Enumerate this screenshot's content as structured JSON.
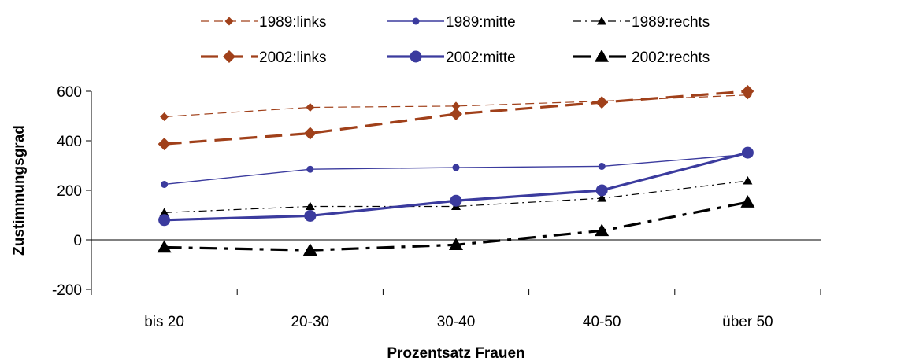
{
  "chart_data": {
    "type": "line",
    "title": "",
    "xlabel": "Prozentsatz Frauen",
    "ylabel": "Zustimmungsgrad",
    "categories": [
      "bis 20",
      "20-30",
      "30-40",
      "40-50",
      "über 50"
    ],
    "ylim": [
      -200,
      600
    ],
    "yticks": [
      -200,
      0,
      200,
      400,
      600
    ],
    "grid": false,
    "legend_position": "top",
    "series": [
      {
        "name": "1989:links",
        "values": [
          497,
          535,
          540,
          560,
          585
        ],
        "color": "#a0401a",
        "style": "thin-dashed",
        "marker": "diamond-small"
      },
      {
        "name": "1989:mitte",
        "values": [
          224,
          285,
          292,
          297,
          345
        ],
        "color": "#3b3b9e",
        "style": "thin-solid",
        "marker": "circle-small"
      },
      {
        "name": "1989:rechts",
        "values": [
          110,
          135,
          135,
          168,
          238
        ],
        "color": "#000000",
        "style": "thin-dashdot",
        "marker": "triangle-small"
      },
      {
        "name": "2002:links",
        "values": [
          387,
          430,
          508,
          555,
          600
        ],
        "color": "#a0401a",
        "style": "thick-dashed",
        "marker": "diamond-large"
      },
      {
        "name": "2002:mitte",
        "values": [
          80,
          97,
          158,
          200,
          352
        ],
        "color": "#3b3b9e",
        "style": "thick-solid",
        "marker": "circle-large"
      },
      {
        "name": "2002:rechts",
        "values": [
          -30,
          -42,
          -20,
          37,
          152
        ],
        "color": "#000000",
        "style": "thick-dashdot",
        "marker": "triangle-large"
      }
    ]
  }
}
